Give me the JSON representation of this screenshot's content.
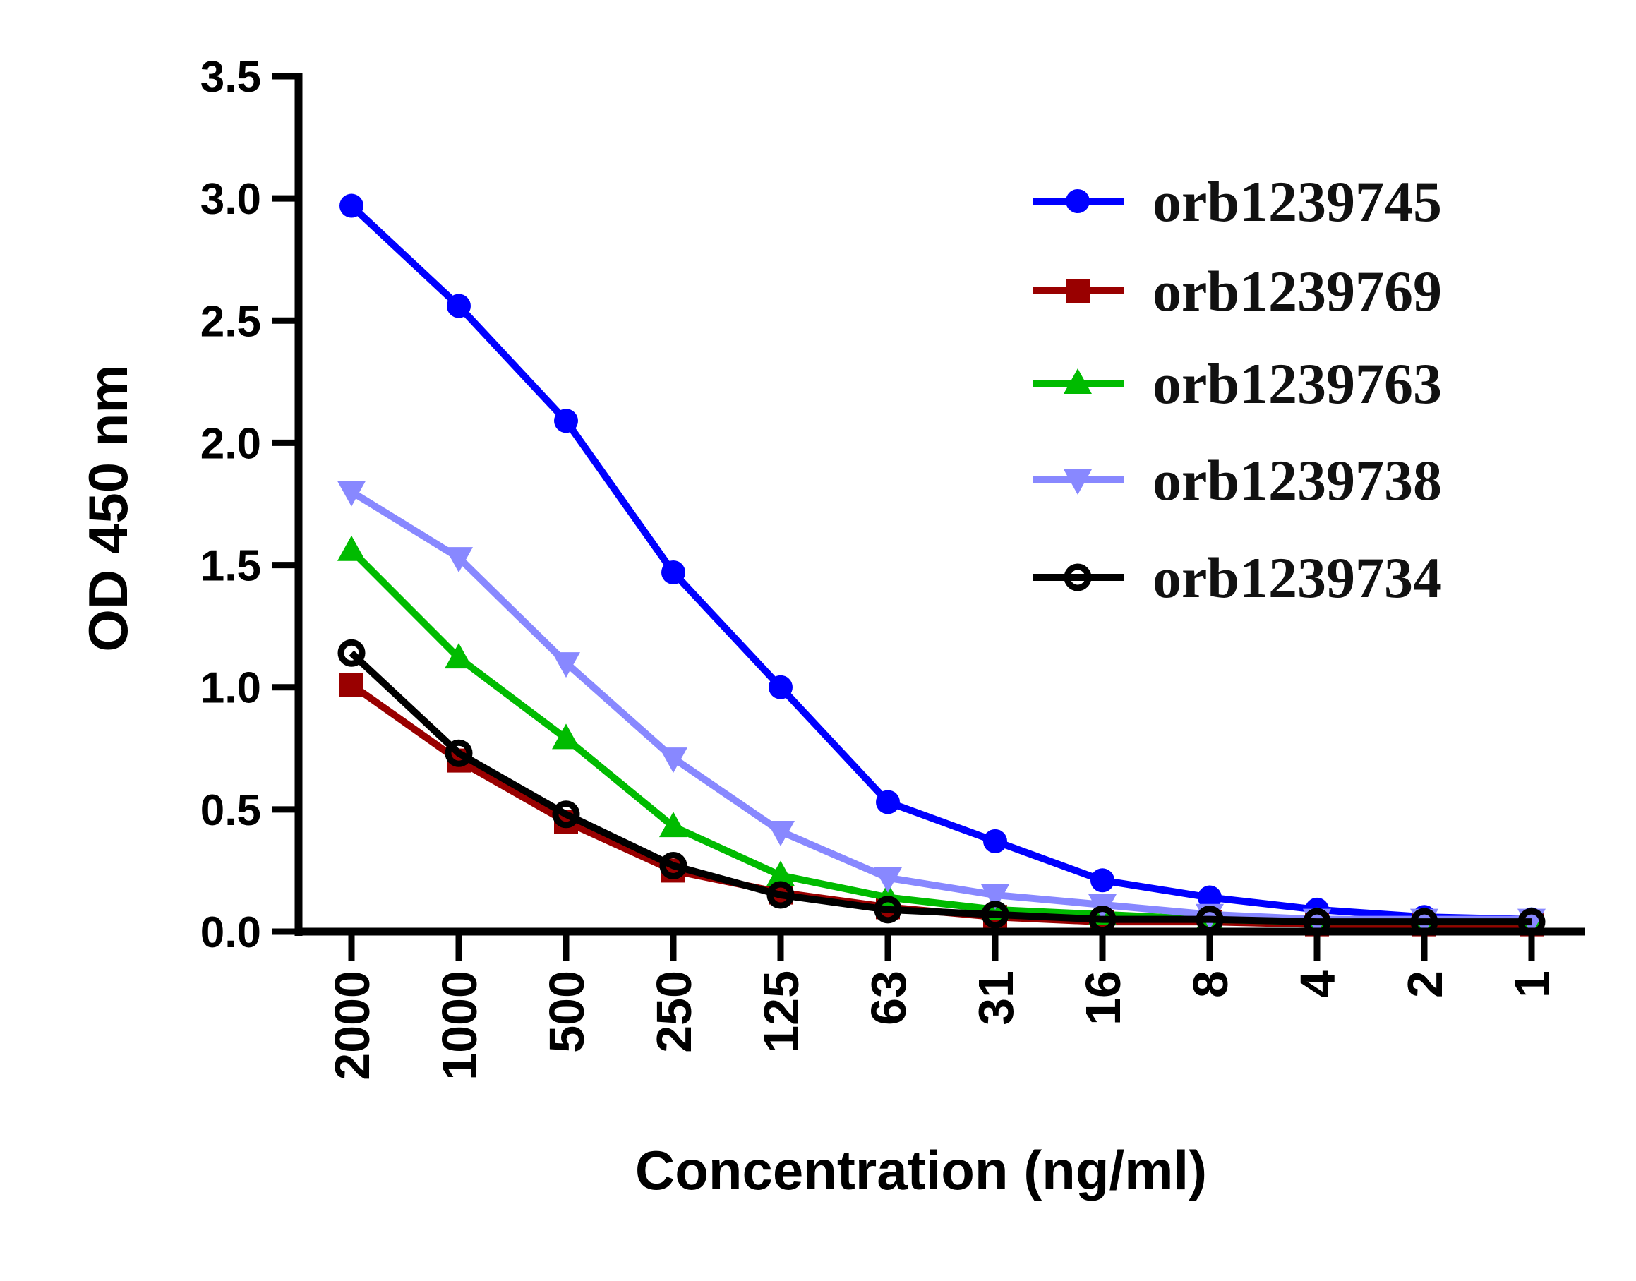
{
  "chart_data": {
    "type": "line",
    "title": "",
    "xlabel": "Concentration (ng/ml)",
    "ylabel": "OD 450 nm",
    "categories": [
      "2000",
      "1000",
      "500",
      "250",
      "125",
      "63",
      "31",
      "16",
      "8",
      "4",
      "2",
      "1"
    ],
    "ylim": [
      0,
      3.5
    ],
    "yticks": [
      "0.0",
      "0.5",
      "1.0",
      "1.5",
      "2.0",
      "2.5",
      "3.0",
      "3.5"
    ],
    "grid": false,
    "legend_position": "top-right",
    "series": [
      {
        "name": "orb1239745",
        "color": "#0000ff",
        "marker": "circle",
        "values": [
          2.97,
          2.56,
          2.09,
          1.47,
          1.0,
          0.53,
          0.37,
          0.21,
          0.14,
          0.09,
          0.06,
          0.05
        ]
      },
      {
        "name": "orb1239769",
        "color": "#990000",
        "marker": "square",
        "values": [
          1.01,
          0.7,
          0.45,
          0.25,
          0.16,
          0.1,
          0.06,
          0.04,
          0.04,
          0.03,
          0.03,
          0.03
        ]
      },
      {
        "name": "orb1239763",
        "color": "#00bb00",
        "marker": "triangle-up",
        "values": [
          1.56,
          1.12,
          0.79,
          0.43,
          0.23,
          0.14,
          0.09,
          0.07,
          0.05,
          0.04,
          0.04,
          0.04
        ]
      },
      {
        "name": "orb1239738",
        "color": "#8888ff",
        "marker": "triangle-down",
        "values": [
          1.8,
          1.53,
          1.1,
          0.71,
          0.41,
          0.22,
          0.15,
          0.11,
          0.07,
          0.05,
          0.05,
          0.05
        ]
      },
      {
        "name": "orb1239734",
        "color": "#000000",
        "marker": "open-circle",
        "values": [
          1.14,
          0.73,
          0.48,
          0.27,
          0.15,
          0.09,
          0.07,
          0.05,
          0.05,
          0.04,
          0.04,
          0.04
        ]
      }
    ]
  }
}
